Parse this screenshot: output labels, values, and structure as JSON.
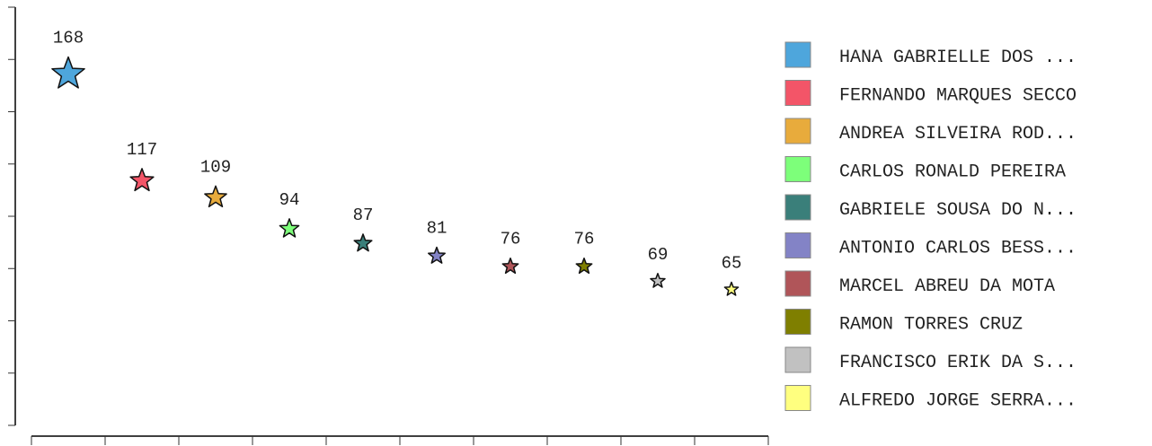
{
  "chart_data": {
    "type": "scatter",
    "marker": "star",
    "title": "",
    "xlabel": "",
    "ylabel": "",
    "grid": false,
    "legend_position": "right",
    "ylim": [
      0,
      200
    ],
    "series": [
      {
        "name": "HANA GABRIELLE DOS ...",
        "value": 168,
        "color": "#4ea6dc"
      },
      {
        "name": "FERNANDO MARQUES SECCO",
        "value": 117,
        "color": "#f35568"
      },
      {
        "name": "ANDREA SILVEIRA ROD...",
        "value": 109,
        "color": "#e8ab3c"
      },
      {
        "name": "CARLOS RONALD PEREIRA",
        "value": 94,
        "color": "#7dff7a"
      },
      {
        "name": "GABRIELE SOUSA DO N...",
        "value": 87,
        "color": "#3a7f7a"
      },
      {
        "name": "ANTONIO CARLOS BESS...",
        "value": 81,
        "color": "#8383c6"
      },
      {
        "name": "MARCEL ABREU DA MOTA",
        "value": 76,
        "color": "#b05559"
      },
      {
        "name": "RAMON TORRES CRUZ",
        "value": 76,
        "color": "#7f7f00"
      },
      {
        "name": "FRANCISCO ERIK DA S...",
        "value": 69,
        "color": "#c1c1c1"
      },
      {
        "name": "ALFREDO JORGE SERRA...",
        "value": 65,
        "color": "#ffff7f"
      }
    ]
  }
}
